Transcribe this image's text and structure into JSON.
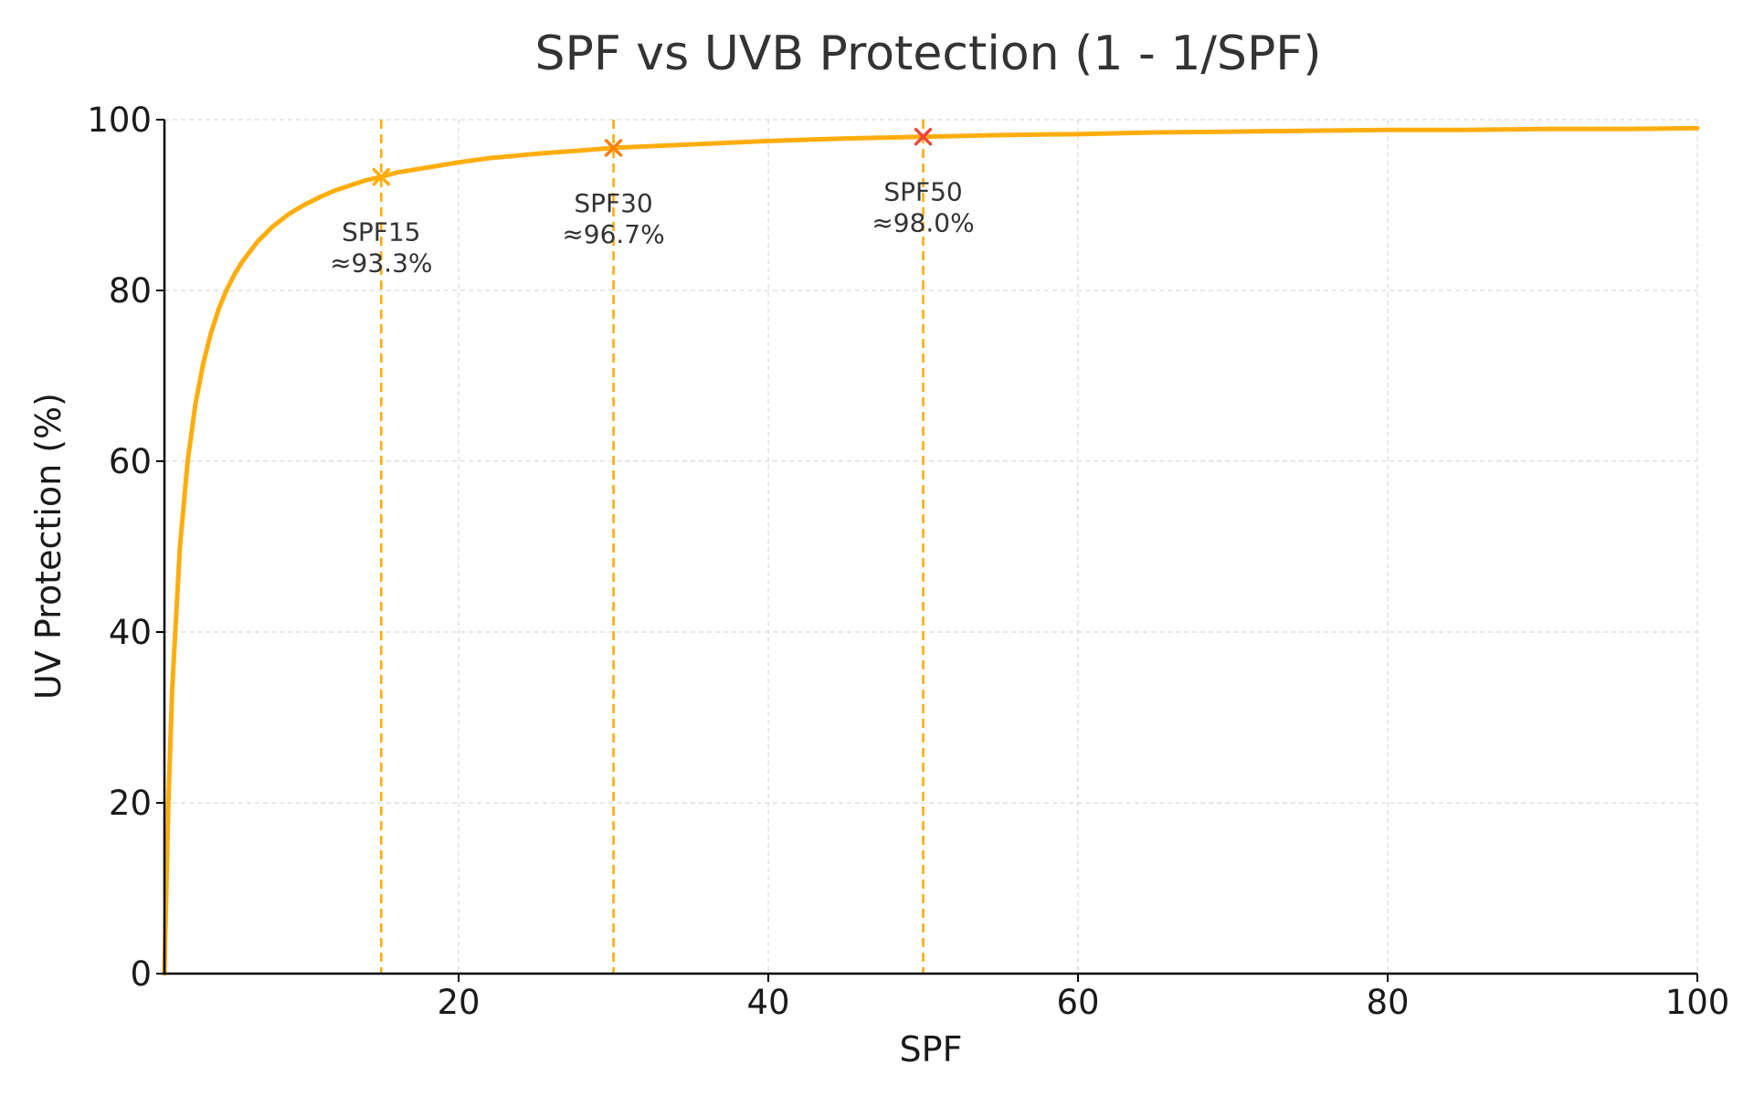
{
  "chart_data": {
    "type": "line",
    "title": "SPF vs UVB Protection (1 - 1/SPF)",
    "xlabel": "SPF",
    "ylabel": "UV Protection (%)",
    "xlim": [
      1,
      100
    ],
    "ylim": [
      0,
      100
    ],
    "xticks": [
      20,
      40,
      60,
      80,
      100
    ],
    "yticks": [
      0,
      20,
      40,
      60,
      80,
      100
    ],
    "grid": true,
    "series": [
      {
        "name": "UV Protection",
        "formula": "100 * (1 - 1/SPF)",
        "color": "#FFAD0D",
        "x": [
          1,
          1.25,
          1.5,
          2,
          2.5,
          3,
          3.5,
          4,
          4.5,
          5,
          5.5,
          6,
          7,
          8,
          9,
          10,
          11,
          12,
          13,
          14,
          15,
          16,
          18,
          20,
          22,
          25,
          28,
          30,
          35,
          40,
          45,
          50,
          55,
          60,
          65,
          70,
          75,
          80,
          85,
          90,
          95,
          100
        ],
        "y": [
          0,
          20,
          33.3,
          50,
          60,
          66.7,
          71.4,
          75,
          77.8,
          80,
          81.8,
          83.3,
          85.7,
          87.5,
          88.9,
          90,
          90.9,
          91.7,
          92.3,
          92.9,
          93.3,
          93.8,
          94.4,
          95,
          95.5,
          96,
          96.4,
          96.7,
          97.1,
          97.5,
          97.8,
          98,
          98.2,
          98.3,
          98.5,
          98.6,
          98.7,
          98.8,
          98.8,
          98.9,
          98.9,
          99
        ]
      }
    ],
    "reference_lines": {
      "color": "#FFAD0D",
      "x": [
        15,
        30,
        50
      ]
    },
    "markers": [
      {
        "x": 15,
        "y": 93.3,
        "color": "#FFAD0D"
      },
      {
        "x": 30,
        "y": 96.7,
        "color": "#FF7F0E"
      },
      {
        "x": 50,
        "y": 98.0,
        "color": "#F0443A"
      }
    ],
    "annotations": [
      {
        "x": 15,
        "y": 93.3,
        "line1": "SPF15",
        "line2": "≈93.3%"
      },
      {
        "x": 30,
        "y": 96.7,
        "line1": "SPF30",
        "line2": "≈96.7%"
      },
      {
        "x": 50,
        "y": 98.0,
        "line1": "SPF50",
        "line2": "≈98.0%"
      }
    ]
  }
}
